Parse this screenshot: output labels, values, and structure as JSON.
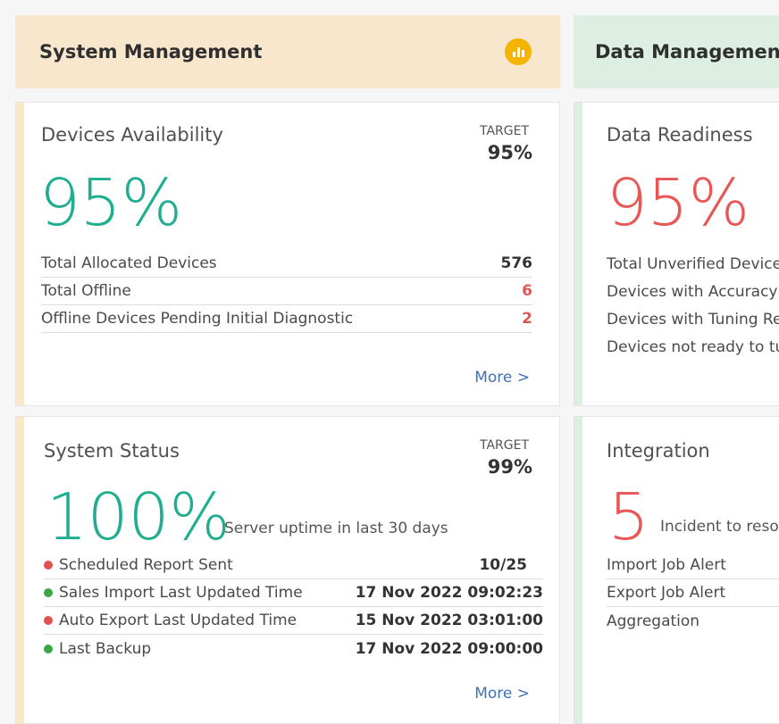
{
  "colors": {
    "system_header_bg": "#f8e6cd",
    "data_header_bg": "#dcefe2",
    "system_accent": "#fbe8c8",
    "data_accent": "#dcefe2",
    "green": "#1fae8f",
    "red": "#e85656",
    "status_green": "#3aa745",
    "status_red": "#e05252",
    "link": "#3f72b8",
    "chart_button": "#f4b400"
  },
  "system_management": {
    "title": "System Management",
    "chart_icon": "bar-chart-icon"
  },
  "data_management": {
    "title": "Data Management"
  },
  "devices_availability": {
    "title": "Devices Availability",
    "target_label": "TARGET",
    "target_value": "95%",
    "big_value": "95%",
    "rows": [
      {
        "label": "Total Allocated Devices",
        "value": "576"
      },
      {
        "label": "Total Offline",
        "value": "6"
      },
      {
        "label": "Offline Devices Pending Initial Diagnostic",
        "value": "2"
      }
    ],
    "more": "More >"
  },
  "data_readiness": {
    "title": "Data Readiness",
    "big_value": "95%",
    "rows": [
      {
        "label": "Total Unverified Devices"
      },
      {
        "label": "Devices with Accuracy"
      },
      {
        "label": "Devices with Tuning Re"
      },
      {
        "label": "Devices not ready to tu"
      }
    ]
  },
  "system_status": {
    "title": "System Status",
    "target_label": "TARGET",
    "target_value": "99%",
    "big_value": "100%",
    "big_caption": "Server uptime in last 30 days",
    "rows": [
      {
        "label": "Scheduled Report Sent",
        "value": "10/25",
        "status": "red"
      },
      {
        "label": "Sales Import Last Updated Time",
        "value": "17 Nov 2022 09:02:23",
        "status": "green"
      },
      {
        "label": "Auto Export Last Updated Time",
        "value": "15 Nov 2022 03:01:00",
        "status": "red"
      },
      {
        "label": "Last Backup",
        "value": "17 Nov 2022 09:00:00",
        "status": "green"
      }
    ],
    "more": "More >"
  },
  "integration": {
    "title": "Integration",
    "big_value": "5",
    "big_caption": "Incident to reso",
    "rows": [
      {
        "label": "Import Job Alert"
      },
      {
        "label": "Export Job Alert"
      },
      {
        "label": "Aggregation"
      }
    ]
  }
}
